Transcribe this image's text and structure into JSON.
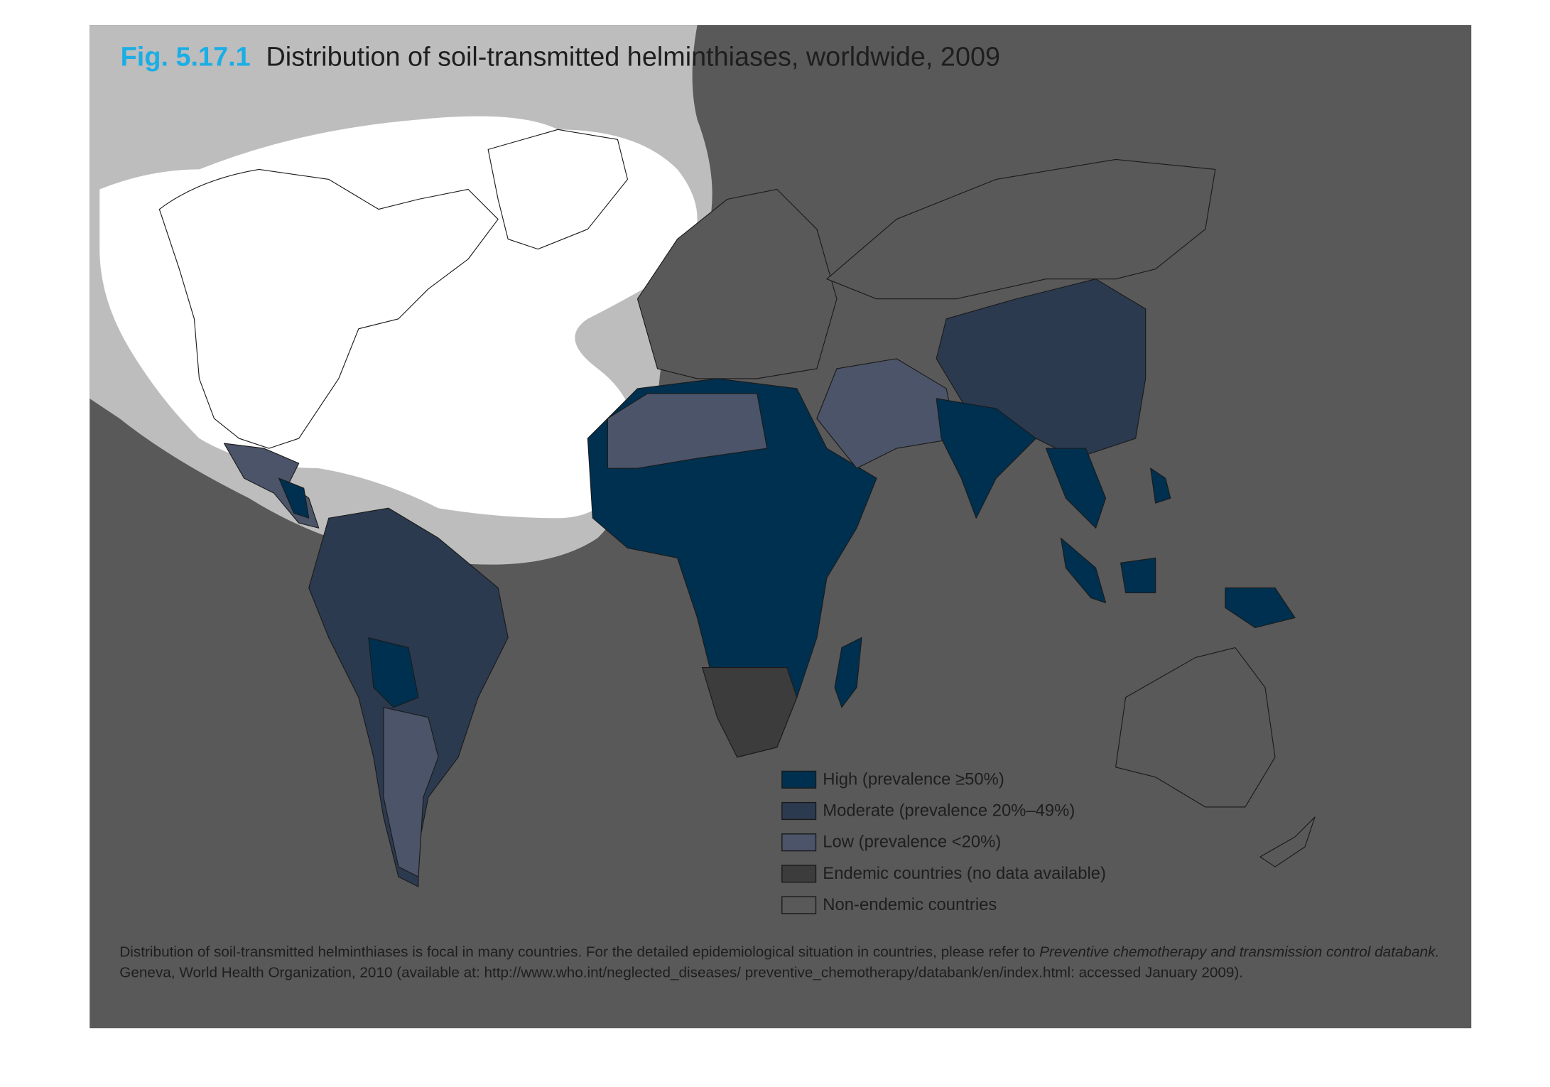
{
  "title": {
    "label": "Fig. 5.17.1",
    "text": "Distribution of soil-transmitted helminthiases, worldwide, 2009"
  },
  "legend": [
    {
      "label": "High (prevalence ≥50%)",
      "color": "#00304f"
    },
    {
      "label": "Moderate (prevalence 20%–49%)",
      "color": "#2b3a4f"
    },
    {
      "label": "Low (prevalence <20%)",
      "color": "#4b5468"
    },
    {
      "label": "Endemic countries (no data available)",
      "color": "#3c3c3c"
    },
    {
      "label": "Non-endemic countries",
      "color": "#595959"
    }
  ],
  "note": {
    "line1": "Distribution of soil-transmitted helminthiases is focal in many countries. For the detailed epidemiological situation in countries, please refer to ",
    "line1_italic": "Preventive chemotherapy and transmission control databank.",
    "line2": "Geneva, World Health Organization, 2010 (available at: http://www.who.int/neglected_diseases/ preventive_chemotherapy/databank/en/index.html: accessed January 2009)."
  }
}
